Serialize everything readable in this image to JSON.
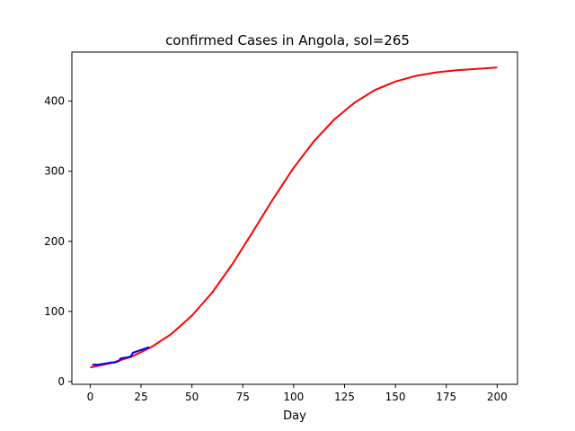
{
  "chart_data": {
    "type": "line",
    "title": "confirmed Cases in Angola, sol=265",
    "xlabel": "Day",
    "ylabel": "",
    "xlim": [
      -9,
      210
    ],
    "ylim": [
      -4,
      470
    ],
    "x_ticks": [
      0,
      25,
      50,
      75,
      100,
      125,
      150,
      175,
      200
    ],
    "y_ticks": [
      0,
      100,
      200,
      300,
      400
    ],
    "grid": false,
    "series": [
      {
        "color": "#ff0000",
        "style": "solid",
        "points": [
          [
            0,
            20
          ],
          [
            10,
            26
          ],
          [
            20,
            35
          ],
          [
            30,
            49
          ],
          [
            40,
            68
          ],
          [
            50,
            94
          ],
          [
            60,
            127
          ],
          [
            70,
            168
          ],
          [
            80,
            214
          ],
          [
            90,
            261
          ],
          [
            100,
            305
          ],
          [
            110,
            343
          ],
          [
            120,
            374
          ],
          [
            130,
            398
          ],
          [
            140,
            416
          ],
          [
            150,
            428
          ],
          [
            160,
            436
          ],
          [
            170,
            441
          ],
          [
            180,
            444
          ],
          [
            190,
            446
          ],
          [
            200,
            448
          ]
        ]
      },
      {
        "color": "#0000ff",
        "style": "solid",
        "points": [
          [
            1,
            24
          ],
          [
            4,
            24
          ],
          [
            6,
            25
          ],
          [
            8,
            26
          ],
          [
            10,
            27
          ],
          [
            12,
            27
          ],
          [
            14,
            29
          ],
          [
            15,
            33
          ],
          [
            17,
            34
          ],
          [
            19,
            35
          ],
          [
            20,
            36
          ],
          [
            21,
            41
          ],
          [
            23,
            43
          ],
          [
            25,
            45
          ],
          [
            27,
            47
          ],
          [
            29,
            49
          ]
        ]
      }
    ]
  }
}
